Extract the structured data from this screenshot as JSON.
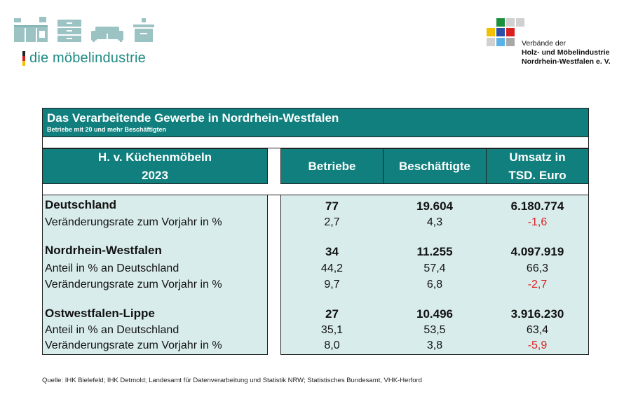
{
  "header": {
    "brand": "die möbelindustrie",
    "icons": [
      "kitchen-icon",
      "bathroom-sink-icon",
      "cabinet-icon",
      "sofa-icon",
      "washbasin-icon"
    ],
    "org_lines": [
      "Verbände der",
      "Holz- und Möbelindustrie",
      "Nordrhein-Westfalen e. V."
    ],
    "colors": {
      "brand_teal": "#1f8a84",
      "table_teal": "#107f7d",
      "table_light": "#d9ecec",
      "negative": "#e02020"
    }
  },
  "table": {
    "title": "Das Verarbeitende Gewerbe in Nordrhein-Westfalen",
    "subtitle": "Betriebe mit 20 und mehr Beschäftigten",
    "label_header_line1": "H. v. Küchenmöbeln",
    "label_header_line2": "2023",
    "col_betriebe": "Betriebe",
    "col_beschaeftigte": "Beschäftigte",
    "col_umsatz_line1": "Umsatz in",
    "col_umsatz_line2": "TSD. Euro",
    "rows": [
      {
        "label": "Deutschland",
        "betriebe": "77",
        "beschaeftigte": "19.604",
        "umsatz": "6.180.774"
      },
      {
        "label": "Veränderungsrate zum Vorjahr in %",
        "betriebe": "2,7",
        "beschaeftigte": "4,3",
        "umsatz": "-1,6"
      },
      {
        "label": "Nordrhein-Westfalen",
        "betriebe": "34",
        "beschaeftigte": "11.255",
        "umsatz": "4.097.919"
      },
      {
        "label": "Anteil in % an Deutschland",
        "betriebe": "44,2",
        "beschaeftigte": "57,4",
        "umsatz": "66,3"
      },
      {
        "label": "Veränderungsrate zum Vorjahr in %",
        "betriebe": "9,7",
        "beschaeftigte": "6,8",
        "umsatz": "-2,7"
      },
      {
        "label": "Ostwestfalen-Lippe",
        "betriebe": "27",
        "beschaeftigte": "10.496",
        "umsatz": "3.916.230"
      },
      {
        "label": "Anteil in % an Deutschland",
        "betriebe": "35,1",
        "beschaeftigte": "53,5",
        "umsatz": "63,4"
      },
      {
        "label": "Veränderungsrate zum Vorjahr in %",
        "betriebe": "8,0",
        "beschaeftigte": "3,8",
        "umsatz": "-5,9"
      }
    ]
  },
  "source": "Quelle: IHK Bielefeld; IHK Detmold; Landesamt für Datenverarbeitung und Statistik NRW; Statistisches Bundesamt, VHK-Herford"
}
